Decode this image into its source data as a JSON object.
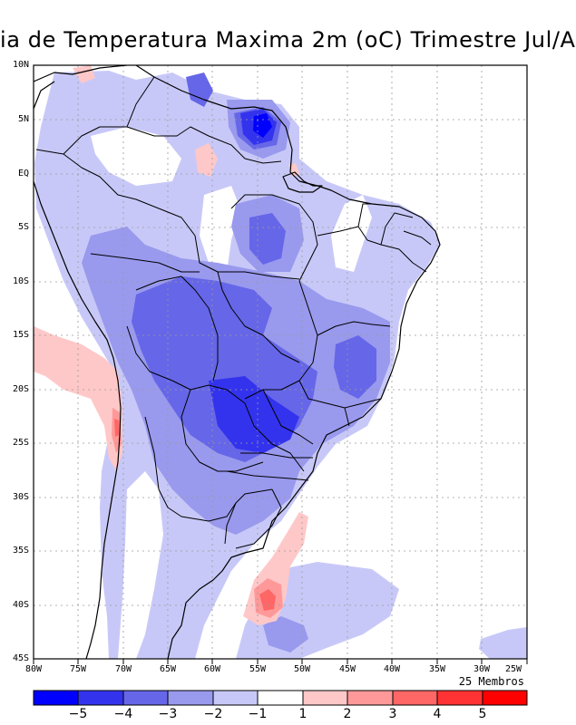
{
  "title": "ia de Temperatura Maxima 2m (oC) Trimestre Jul/A",
  "lat_labels": [
    "10N",
    "5N",
    "EQ",
    "5S",
    "10S",
    "15S",
    "20S",
    "25S",
    "30S",
    "35S",
    "40S",
    "45S"
  ],
  "lon_labels": [
    "80W",
    "75W",
    "70W",
    "65W",
    "60W",
    "55W",
    "50W",
    "45W",
    "40W",
    "35W",
    "30W",
    "25W"
  ],
  "members_label": "25 Membros",
  "colorbar": {
    "labels": [
      "−5",
      "−4",
      "−3",
      "−2",
      "−1",
      "1",
      "2",
      "3",
      "4",
      "5"
    ],
    "colors": [
      "#0000ff",
      "#3333ee",
      "#6666e8",
      "#9999ee",
      "#c8c8f8",
      "#ffffff",
      "#ffc8c8",
      "#ff9999",
      "#ff6666",
      "#ff3333",
      "#ff0000"
    ]
  },
  "palette": {
    "blue1": "#c8c8f8",
    "blue2": "#9999ee",
    "blue3": "#6666e8",
    "blue4": "#3333ee",
    "blue5": "#0000ff",
    "red1": "#ffc8c8",
    "red2": "#ff9999",
    "red3": "#ff6666"
  }
}
